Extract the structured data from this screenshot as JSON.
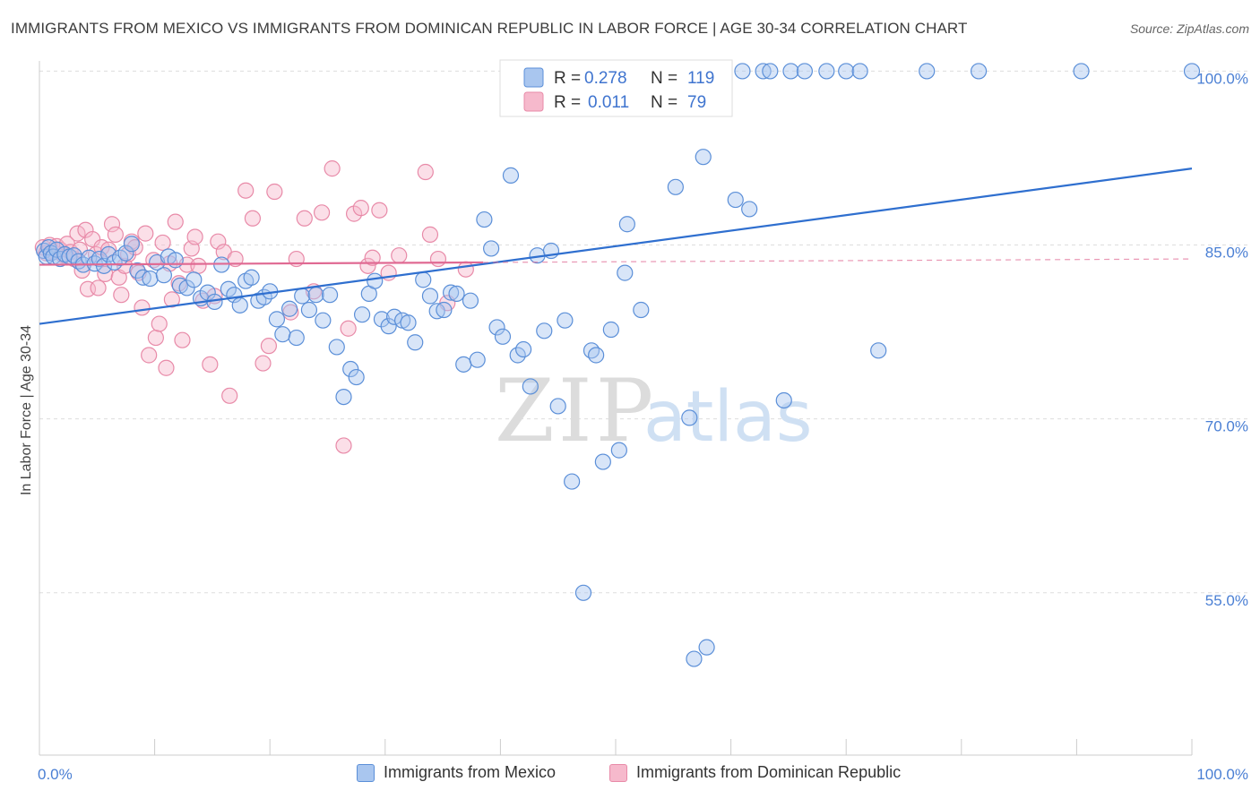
{
  "title": "IMMIGRANTS FROM MEXICO VS IMMIGRANTS FROM DOMINICAN REPUBLIC IN LABOR FORCE | AGE 30-34 CORRELATION CHART",
  "source": "Source: ZipAtlas.com",
  "watermark": {
    "zip": "ZIP",
    "atlas": "atlas"
  },
  "colors": {
    "mexico_fill": "#a9c6ef",
    "mexico_stroke": "#5b8fd8",
    "mexico_line": "#2f6fcf",
    "dominican_fill": "#f6b9cc",
    "dominican_stroke": "#e88aa8",
    "dominican_line": "#e06a93",
    "tick_text": "#4a7fd4",
    "grid": "#dddddd"
  },
  "legend": {
    "rows": [
      {
        "r_label": "R =",
        "r_value": "0.278",
        "n_label": "N =",
        "n_value": "119"
      },
      {
        "r_label": "R =",
        "r_value": "0.011",
        "n_label": "N =",
        "n_value": "79"
      }
    ]
  },
  "chart_data": {
    "type": "scatter",
    "xlabel": "",
    "ylabel": "In Labor Force | Age 30-34",
    "xlim": [
      0,
      100
    ],
    "ylim": [
      41,
      101.5
    ],
    "x_tick_labels": [
      {
        "value": 0,
        "label": "0.0%"
      },
      {
        "value": 100,
        "label": "100.0%"
      }
    ],
    "y_tick_labels": [
      {
        "value": 100,
        "label": "100.0%"
      },
      {
        "value": 85,
        "label": "85.0%"
      },
      {
        "value": 70,
        "label": "70.0%"
      },
      {
        "value": 55,
        "label": "55.0%"
      }
    ],
    "grid": "horizontal dashed",
    "legend_position": "top-center",
    "series": [
      {
        "name": "Immigrants from Mexico",
        "r": 0.278,
        "n": 119,
        "trend": {
          "x0": 0,
          "y0": 78.2,
          "x1": 100,
          "y1": 91.6
        },
        "points": [
          [
            0.4,
            84.5
          ],
          [
            0.6,
            84.0
          ],
          [
            0.8,
            84.8
          ],
          [
            1.0,
            84.3
          ],
          [
            1.2,
            84.0
          ],
          [
            1.5,
            84.6
          ],
          [
            1.8,
            83.8
          ],
          [
            2.2,
            84.2
          ],
          [
            2.6,
            84.0
          ],
          [
            3.0,
            84.1
          ],
          [
            3.4,
            83.6
          ],
          [
            3.8,
            83.3
          ],
          [
            4.3,
            83.9
          ],
          [
            4.8,
            83.4
          ],
          [
            5.2,
            83.8
          ],
          [
            5.6,
            83.2
          ],
          [
            6.0,
            84.2
          ],
          [
            6.5,
            83.5
          ],
          [
            7.0,
            83.9
          ],
          [
            7.5,
            84.3
          ],
          [
            8.0,
            85.1
          ],
          [
            8.5,
            82.8
          ],
          [
            9.0,
            82.2
          ],
          [
            9.6,
            82.1
          ],
          [
            10.2,
            83.5
          ],
          [
            10.8,
            82.4
          ],
          [
            11.2,
            84.0
          ],
          [
            11.8,
            83.7
          ],
          [
            12.2,
            81.5
          ],
          [
            12.8,
            81.3
          ],
          [
            13.4,
            82.0
          ],
          [
            14.0,
            80.4
          ],
          [
            14.6,
            80.9
          ],
          [
            15.2,
            80.1
          ],
          [
            15.8,
            83.3
          ],
          [
            16.4,
            81.2
          ],
          [
            16.9,
            80.7
          ],
          [
            17.4,
            79.8
          ],
          [
            17.9,
            81.9
          ],
          [
            18.4,
            82.2
          ],
          [
            19.0,
            80.2
          ],
          [
            19.5,
            80.5
          ],
          [
            20.0,
            81.0
          ],
          [
            20.6,
            78.6
          ],
          [
            21.1,
            77.3
          ],
          [
            21.7,
            79.5
          ],
          [
            22.3,
            77.0
          ],
          [
            22.8,
            80.6
          ],
          [
            23.4,
            79.4
          ],
          [
            24.0,
            80.7
          ],
          [
            24.6,
            78.5
          ],
          [
            25.2,
            80.7
          ],
          [
            25.8,
            76.2
          ],
          [
            26.4,
            71.9
          ],
          [
            27.0,
            74.3
          ],
          [
            27.5,
            73.6
          ],
          [
            28.0,
            79.0
          ],
          [
            28.6,
            80.8
          ],
          [
            29.1,
            81.9
          ],
          [
            29.7,
            78.6
          ],
          [
            30.3,
            78.0
          ],
          [
            30.8,
            78.8
          ],
          [
            31.5,
            78.5
          ],
          [
            32.0,
            78.3
          ],
          [
            32.6,
            76.6
          ],
          [
            33.3,
            82.0
          ],
          [
            33.9,
            80.6
          ],
          [
            34.5,
            79.3
          ],
          [
            35.1,
            79.4
          ],
          [
            35.7,
            80.9
          ],
          [
            36.2,
            80.8
          ],
          [
            36.8,
            74.7
          ],
          [
            37.4,
            80.2
          ],
          [
            38.0,
            75.1
          ],
          [
            38.6,
            87.2
          ],
          [
            39.2,
            84.7
          ],
          [
            39.7,
            77.9
          ],
          [
            40.2,
            77.1
          ],
          [
            40.9,
            91.0
          ],
          [
            41.5,
            75.5
          ],
          [
            42.0,
            76.0
          ],
          [
            42.6,
            72.8
          ],
          [
            43.2,
            84.1
          ],
          [
            43.8,
            77.6
          ],
          [
            44.4,
            84.5
          ],
          [
            45.0,
            71.1
          ],
          [
            45.6,
            78.5
          ],
          [
            46.2,
            64.6
          ],
          [
            47.2,
            55.0
          ],
          [
            47.9,
            75.9
          ],
          [
            48.3,
            75.5
          ],
          [
            48.9,
            66.3
          ],
          [
            49.6,
            77.7
          ],
          [
            50.3,
            67.3
          ],
          [
            50.8,
            82.6
          ],
          [
            51.0,
            86.8
          ],
          [
            52.2,
            79.4
          ],
          [
            53.4,
            100.0
          ],
          [
            54.0,
            100.0
          ],
          [
            54.6,
            100.0
          ],
          [
            55.2,
            90.0
          ],
          [
            56.4,
            70.1
          ],
          [
            56.8,
            49.3
          ],
          [
            57.6,
            92.6
          ],
          [
            57.9,
            50.3
          ],
          [
            58.8,
            100.0
          ],
          [
            59.2,
            100.0
          ],
          [
            60.4,
            88.9
          ],
          [
            61.0,
            100.0
          ],
          [
            61.6,
            88.1
          ],
          [
            62.8,
            100.0
          ],
          [
            63.4,
            100.0
          ],
          [
            64.6,
            71.6
          ],
          [
            65.2,
            100.0
          ],
          [
            66.4,
            100.0
          ],
          [
            68.3,
            100.0
          ],
          [
            70.0,
            100.0
          ],
          [
            71.2,
            100.0
          ],
          [
            72.8,
            75.9
          ],
          [
            77.0,
            100.0
          ],
          [
            81.5,
            100.0
          ],
          [
            90.4,
            100.0
          ],
          [
            100.0,
            100.0
          ]
        ]
      },
      {
        "name": "Immigrants from Dominican Republic",
        "r": 0.011,
        "n": 79,
        "trend": {
          "x0": 0,
          "y0": 83.3,
          "x1": 38.5,
          "y1": 83.5
        },
        "trend_dashed": {
          "x0": 38.5,
          "y0": 83.5,
          "x1": 100,
          "y1": 83.8
        },
        "points": [
          [
            0.3,
            84.8
          ],
          [
            0.6,
            84.3
          ],
          [
            0.9,
            85.0
          ],
          [
            1.2,
            84.4
          ],
          [
            1.5,
            84.9
          ],
          [
            1.8,
            84.6
          ],
          [
            2.1,
            84.1
          ],
          [
            2.4,
            85.1
          ],
          [
            2.7,
            84.4
          ],
          [
            3.0,
            83.8
          ],
          [
            3.3,
            86.0
          ],
          [
            3.5,
            84.6
          ],
          [
            3.7,
            82.8
          ],
          [
            4.0,
            86.3
          ],
          [
            4.2,
            81.2
          ],
          [
            4.6,
            85.5
          ],
          [
            4.9,
            84.2
          ],
          [
            5.1,
            81.3
          ],
          [
            5.4,
            84.8
          ],
          [
            5.7,
            82.5
          ],
          [
            6.0,
            84.6
          ],
          [
            6.3,
            86.8
          ],
          [
            6.6,
            85.9
          ],
          [
            6.9,
            82.2
          ],
          [
            7.1,
            80.7
          ],
          [
            7.4,
            83.2
          ],
          [
            7.7,
            84.2
          ],
          [
            8.0,
            85.3
          ],
          [
            8.3,
            84.8
          ],
          [
            8.6,
            82.6
          ],
          [
            8.9,
            79.6
          ],
          [
            9.2,
            86.0
          ],
          [
            9.5,
            75.5
          ],
          [
            9.9,
            83.7
          ],
          [
            10.1,
            77.0
          ],
          [
            10.4,
            78.2
          ],
          [
            10.7,
            85.2
          ],
          [
            11.0,
            74.4
          ],
          [
            11.3,
            83.4
          ],
          [
            11.5,
            80.3
          ],
          [
            11.8,
            87.0
          ],
          [
            12.1,
            81.7
          ],
          [
            12.4,
            76.8
          ],
          [
            12.8,
            83.3
          ],
          [
            13.2,
            84.7
          ],
          [
            13.5,
            85.7
          ],
          [
            13.8,
            83.2
          ],
          [
            14.2,
            80.2
          ],
          [
            14.8,
            74.7
          ],
          [
            15.2,
            80.6
          ],
          [
            15.5,
            85.3
          ],
          [
            16.0,
            84.4
          ],
          [
            16.5,
            72.0
          ],
          [
            17.0,
            83.8
          ],
          [
            17.9,
            89.7
          ],
          [
            18.5,
            87.3
          ],
          [
            19.4,
            74.8
          ],
          [
            19.9,
            76.3
          ],
          [
            20.4,
            89.6
          ],
          [
            21.8,
            79.2
          ],
          [
            22.3,
            83.8
          ],
          [
            23.0,
            87.3
          ],
          [
            23.8,
            81.0
          ],
          [
            24.5,
            87.8
          ],
          [
            25.4,
            91.6
          ],
          [
            26.4,
            67.7
          ],
          [
            26.8,
            77.8
          ],
          [
            27.3,
            87.7
          ],
          [
            27.9,
            88.2
          ],
          [
            28.5,
            83.2
          ],
          [
            28.9,
            83.9
          ],
          [
            29.5,
            88.0
          ],
          [
            30.3,
            82.6
          ],
          [
            31.2,
            84.1
          ],
          [
            33.5,
            91.3
          ],
          [
            33.9,
            85.9
          ],
          [
            34.6,
            83.8
          ],
          [
            35.4,
            80.0
          ],
          [
            37.0,
            82.9
          ]
        ]
      }
    ]
  },
  "bottom_legend": [
    {
      "label": "Immigrants from Mexico"
    },
    {
      "label": "Immigrants from Dominican Republic"
    }
  ]
}
